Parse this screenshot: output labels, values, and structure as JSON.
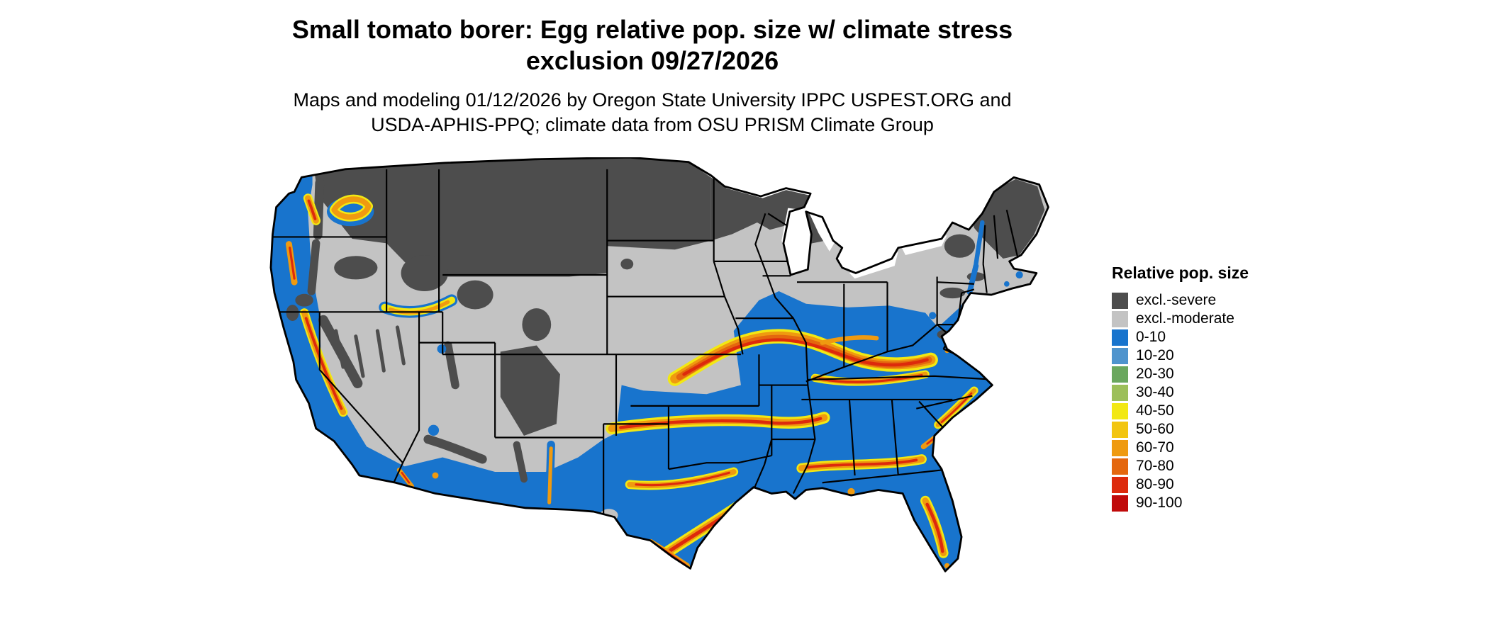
{
  "figure": {
    "title_line1": "Small tomato borer: Egg relative pop. size w/ climate stress",
    "title_line2": "exclusion 09/27/2026",
    "subtitle_line1": "Maps and modeling 01/12/2026 by Oregon State University IPPC USPEST.ORG and",
    "subtitle_line2": "USDA-APHIS-PPQ; climate data from OSU PRISM Climate Group"
  },
  "legend": {
    "title": "Relative pop. size",
    "items": [
      {
        "label": "excl.-severe",
        "color": "#4d4d4d"
      },
      {
        "label": "excl.-moderate",
        "color": "#c3c3c3"
      },
      {
        "label": "0-10",
        "color": "#1874cd"
      },
      {
        "label": "10-20",
        "color": "#4f94cd"
      },
      {
        "label": "20-30",
        "color": "#6aa75e"
      },
      {
        "label": "30-40",
        "color": "#9cbf5a"
      },
      {
        "label": "40-50",
        "color": "#f2e813"
      },
      {
        "label": "50-60",
        "color": "#f2c511"
      },
      {
        "label": "60-70",
        "color": "#ef9a10"
      },
      {
        "label": "70-80",
        "color": "#e4670e"
      },
      {
        "label": "80-90",
        "color": "#dd2a0c"
      },
      {
        "label": "90-100",
        "color": "#c00a0a"
      }
    ]
  },
  "map": {
    "name": "Continental United States relative population size raster map",
    "palette": {
      "background": "#ffffff",
      "excl_severe": "#4d4d4d",
      "excl_moderate": "#c3c3c3",
      "pop_0_10": "#1874cd",
      "pop_40_50": "#f2e813",
      "pop_60_70": "#ef9a10",
      "pop_70_80": "#e4670e",
      "pop_80_90": "#dd2a0c",
      "pop_90_100": "#c00a0a",
      "state_border": "#000000"
    }
  }
}
